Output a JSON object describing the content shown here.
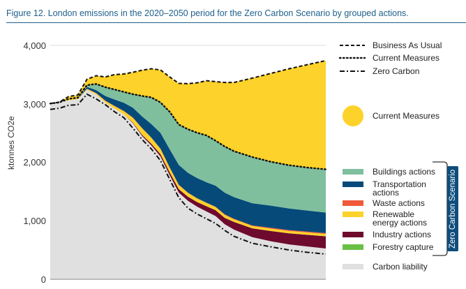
{
  "title": "Figure 12. London emissions in the 2020–2050 period for the Zero Carbon Scenario by grouped actions.",
  "chart_data": {
    "type": "area",
    "title": "Figure 12. London emissions in the 2020–2050 period for the Zero Carbon Scenario by grouped actions.",
    "ylabel": "ktonnes CO2e",
    "xlabel": "",
    "ylim": [
      0,
      4000
    ],
    "xlim": [
      2020,
      2050
    ],
    "yticks": [
      "0",
      "1,000",
      "2,000",
      "3,000",
      "4,000"
    ],
    "grid": true,
    "x": [
      2020,
      2021,
      2022,
      2023,
      2024,
      2025,
      2026,
      2027,
      2028,
      2029,
      2030,
      2031,
      2032,
      2033,
      2034,
      2035,
      2036,
      2037,
      2038,
      2039,
      2040,
      2042,
      2044,
      2046,
      2048,
      2050
    ],
    "stacked_series": [
      {
        "name": "Carbon liability",
        "color": "#e0e0e0",
        "values": [
          3005,
          3030,
          3060,
          3080,
          3240,
          3160,
          3020,
          2920,
          2820,
          2670,
          2450,
          2290,
          2100,
          1780,
          1480,
          1340,
          1240,
          1160,
          1080,
          940,
          850,
          720,
          650,
          595,
          560,
          525
        ]
      },
      {
        "name": "Forestry capture",
        "color": "#6abf45",
        "values": [
          0,
          0,
          0,
          0,
          0,
          0,
          0,
          0,
          0,
          0,
          0,
          0,
          0,
          0,
          0,
          0,
          0,
          0,
          0,
          0,
          0,
          0,
          0,
          0,
          0,
          0
        ]
      },
      {
        "name": "Industry actions",
        "color": "#6e0a2e",
        "values": [
          0,
          0,
          0,
          0,
          0,
          0,
          0,
          0,
          0,
          10,
          20,
          30,
          40,
          50,
          60,
          70,
          80,
          90,
          100,
          110,
          130,
          150,
          175,
          190,
          200,
          210
        ]
      },
      {
        "name": "Renewable energy actions",
        "color": "#fdd22a",
        "values": [
          0,
          0,
          0,
          0,
          15,
          20,
          30,
          40,
          55,
          80,
          110,
          100,
          90,
          80,
          70,
          65,
          60,
          55,
          55,
          50,
          45,
          40,
          40,
          40,
          40,
          40
        ]
      },
      {
        "name": "Waste actions",
        "color": "#f05a3a",
        "values": [
          0,
          0,
          0,
          0,
          5,
          5,
          5,
          5,
          5,
          5,
          5,
          5,
          5,
          5,
          5,
          5,
          5,
          5,
          5,
          10,
          10,
          10,
          15,
          15,
          15,
          15
        ]
      },
      {
        "name": "Transportation actions",
        "color": "#064a7a",
        "values": [
          0,
          0,
          0,
          0,
          30,
          50,
          80,
          110,
          140,
          170,
          200,
          230,
          270,
          310,
          340,
          340,
          345,
          350,
          360,
          370,
          370,
          380,
          380,
          370,
          360,
          350
        ]
      },
      {
        "name": "Buildings actions",
        "color": "#7fbf9e",
        "values": [
          0,
          0,
          0,
          0,
          30,
          105,
          150,
          170,
          185,
          230,
          350,
          455,
          520,
          640,
          690,
          745,
          775,
          800,
          770,
          790,
          785,
          790,
          750,
          740,
          735,
          740
        ]
      }
    ],
    "lines": [
      {
        "name": "Business As Usual",
        "style": "dashed",
        "values": [
          3005,
          3030,
          3125,
          3150,
          3420,
          3480,
          3460,
          3500,
          3510,
          3540,
          3575,
          3600,
          3580,
          3460,
          3350,
          3345,
          3360,
          3395,
          3380,
          3365,
          3365,
          3440,
          3520,
          3600,
          3670,
          3740
        ]
      },
      {
        "name": "Current Measures",
        "style": "dotted",
        "values": [
          3005,
          3025,
          3085,
          3105,
          3320,
          3340,
          3285,
          3245,
          3205,
          3165,
          3135,
          3110,
          3025,
          2865,
          2645,
          2565,
          2505,
          2460,
          2370,
          2270,
          2190,
          2090,
          2010,
          1950,
          1910,
          1880
        ]
      },
      {
        "name": "Zero Carbon",
        "style": "dashdot",
        "values": [
          2905,
          2925,
          2975,
          2985,
          3165,
          3085,
          2985,
          2865,
          2765,
          2585,
          2390,
          2230,
          2030,
          1710,
          1395,
          1215,
          1115,
          1035,
          955,
          835,
          735,
          615,
          555,
          500,
          460,
          430
        ]
      }
    ],
    "current_measures_area": {
      "name": "Current Measures",
      "color": "#fdd22a",
      "between": [
        "stack top",
        "Business As Usual"
      ]
    },
    "legend_placement": "right",
    "legend": {
      "lines": [
        "Business As Usual",
        "Current Measures",
        "Zero Carbon"
      ],
      "current_measures": "Current Measures",
      "items": [
        {
          "label": "Buildings actions",
          "color": "#7fbf9e"
        },
        {
          "label": "Transportation actions",
          "color": "#064a7a"
        },
        {
          "label": "Waste actions",
          "color": "#f05a3a"
        },
        {
          "label": "Renewable energy actions",
          "color": "#fdd22a"
        },
        {
          "label": "Industry actions",
          "color": "#6e0a2e"
        },
        {
          "label": "Forestry capture",
          "color": "#6abf45"
        }
      ],
      "carbon_liability": {
        "label": "Carbon liability",
        "color": "#e0e0e0"
      },
      "group_label": "Zero Carbon Scenario"
    }
  }
}
